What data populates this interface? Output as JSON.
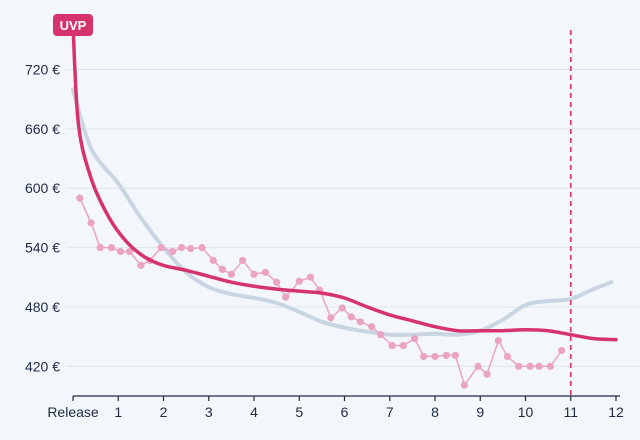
{
  "chart_data": {
    "type": "line",
    "title": "",
    "xlabel": "",
    "ylabel": "",
    "x_ticks": [
      {
        "value": 0,
        "label": "Release"
      },
      {
        "value": 1,
        "label": "1"
      },
      {
        "value": 2,
        "label": "2"
      },
      {
        "value": 3,
        "label": "3"
      },
      {
        "value": 4,
        "label": "4"
      },
      {
        "value": 5,
        "label": "5"
      },
      {
        "value": 6,
        "label": "6"
      },
      {
        "value": 7,
        "label": "7"
      },
      {
        "value": 8,
        "label": "8"
      },
      {
        "value": 9,
        "label": "9"
      },
      {
        "value": 10,
        "label": "10"
      },
      {
        "value": 11,
        "label": "11"
      },
      {
        "value": 12,
        "label": "12"
      }
    ],
    "y_ticks": [
      {
        "value": 420,
        "label": "420 €"
      },
      {
        "value": 480,
        "label": "480 €"
      },
      {
        "value": 540,
        "label": "540 €"
      },
      {
        "value": 600,
        "label": "600 €"
      },
      {
        "value": 660,
        "label": "660 €"
      },
      {
        "value": 720,
        "label": "720 €"
      }
    ],
    "xlim": [
      0,
      12
    ],
    "ylim": [
      390,
      770
    ],
    "grid": true,
    "uvp_label": "UVP",
    "uvp_value": 765,
    "marker_x": 11,
    "series": [
      {
        "role": "comparison",
        "color": "#c9d5e3",
        "points": [
          [
            0,
            700
          ],
          [
            0.4,
            640
          ],
          [
            1,
            605
          ],
          [
            1.5,
            570
          ],
          [
            2,
            540
          ],
          [
            2.5,
            515
          ],
          [
            3,
            500
          ],
          [
            3.5,
            493
          ],
          [
            4,
            489
          ],
          [
            4.5,
            484
          ],
          [
            5,
            475
          ],
          [
            5.5,
            465
          ],
          [
            6,
            459
          ],
          [
            6.5,
            455
          ],
          [
            7,
            452
          ],
          [
            7.5,
            452
          ],
          [
            8,
            453
          ],
          [
            8.5,
            452
          ],
          [
            9,
            456
          ],
          [
            9.5,
            467
          ],
          [
            10,
            482
          ],
          [
            10.5,
            486
          ],
          [
            11,
            488
          ],
          [
            11.5,
            498
          ],
          [
            11.9,
            505
          ]
        ]
      },
      {
        "role": "average",
        "color": "#d6336c",
        "points": [
          [
            0,
            765
          ],
          [
            0.12,
            665
          ],
          [
            0.4,
            610
          ],
          [
            0.8,
            570
          ],
          [
            1.2,
            545
          ],
          [
            1.6,
            530
          ],
          [
            2,
            522
          ],
          [
            2.5,
            517
          ],
          [
            3,
            511
          ],
          [
            3.5,
            505
          ],
          [
            4,
            501
          ],
          [
            4.5,
            498
          ],
          [
            5,
            496
          ],
          [
            5.5,
            494
          ],
          [
            6,
            489
          ],
          [
            6.5,
            480
          ],
          [
            7,
            472
          ],
          [
            7.5,
            466
          ],
          [
            8,
            460
          ],
          [
            8.5,
            456
          ],
          [
            9,
            456
          ],
          [
            9.5,
            456
          ],
          [
            10,
            457
          ],
          [
            10.5,
            456
          ],
          [
            11,
            452
          ],
          [
            11.5,
            448
          ],
          [
            12,
            447
          ]
        ]
      },
      {
        "role": "prices",
        "color": "#eba3c2",
        "points": [
          [
            0.15,
            590
          ],
          [
            0.4,
            565
          ],
          [
            0.6,
            540
          ],
          [
            0.85,
            540
          ],
          [
            1.05,
            536
          ],
          [
            1.25,
            536
          ],
          [
            1.5,
            522
          ],
          [
            1.7,
            527
          ],
          [
            1.95,
            540
          ],
          [
            2.2,
            536
          ],
          [
            2.4,
            540
          ],
          [
            2.6,
            539
          ],
          [
            2.85,
            540
          ],
          [
            3.1,
            527
          ],
          [
            3.3,
            518
          ],
          [
            3.5,
            513
          ],
          [
            3.75,
            527
          ],
          [
            4,
            513
          ],
          [
            4.25,
            515
          ],
          [
            4.5,
            505
          ],
          [
            4.7,
            490
          ],
          [
            5,
            506
          ],
          [
            5.25,
            510
          ],
          [
            5.45,
            497
          ],
          [
            5.7,
            469
          ],
          [
            5.95,
            479
          ],
          [
            6.15,
            470
          ],
          [
            6.35,
            465
          ],
          [
            6.6,
            460
          ],
          [
            6.8,
            452
          ],
          [
            7.05,
            441
          ],
          [
            7.3,
            441
          ],
          [
            7.55,
            448
          ],
          [
            7.75,
            430
          ],
          [
            8,
            430
          ],
          [
            8.25,
            431
          ],
          [
            8.45,
            431
          ],
          [
            8.65,
            401
          ],
          [
            8.95,
            420
          ],
          [
            9.15,
            412
          ],
          [
            9.4,
            446
          ],
          [
            9.6,
            430
          ],
          [
            9.85,
            420
          ],
          [
            10.1,
            420
          ],
          [
            10.3,
            420
          ],
          [
            10.55,
            420
          ],
          [
            10.8,
            436
          ]
        ]
      }
    ]
  }
}
